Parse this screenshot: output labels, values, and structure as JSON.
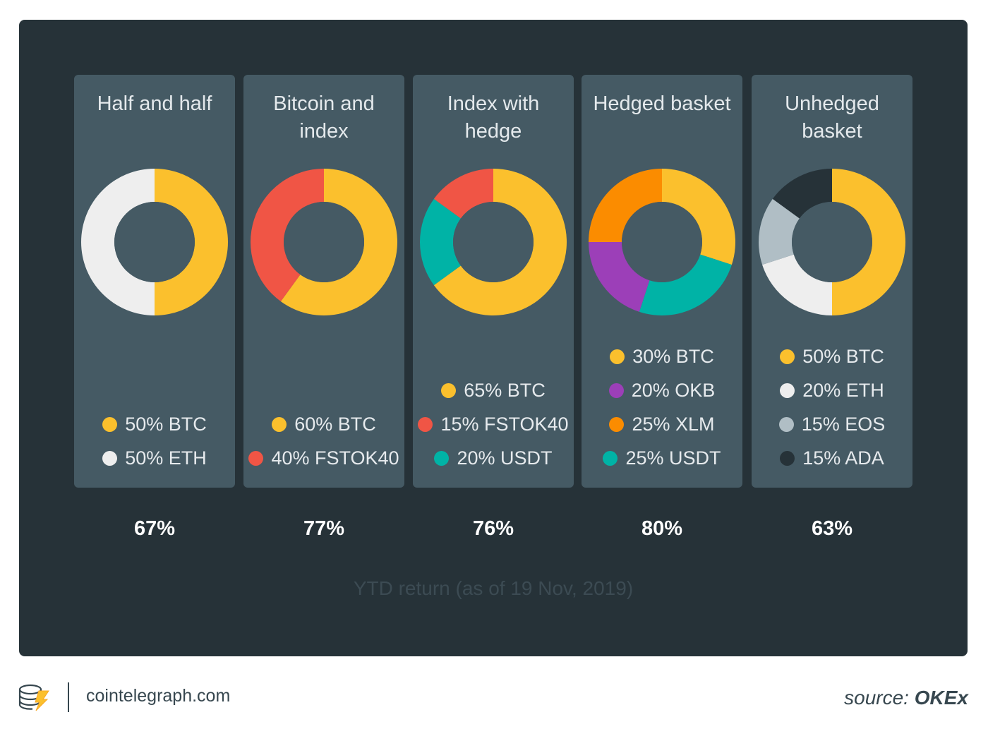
{
  "chart_data": {
    "type": "pie",
    "caption": "YTD return (as of 19 Nov, 2019)",
    "charts": [
      {
        "title": "Half and half",
        "return": "67%",
        "slices": [
          {
            "label": "50% BTC",
            "value": 50,
            "color": "#fbc02d"
          },
          {
            "label": "50% ETH",
            "value": 50,
            "color": "#eeeeee"
          }
        ]
      },
      {
        "title": "Bitcoin and index",
        "return": "77%",
        "slices": [
          {
            "label": "60% BTC",
            "value": 60,
            "color": "#fbc02d"
          },
          {
            "label": "40% FSTOK40",
            "value": 40,
            "color": "#f05545"
          }
        ]
      },
      {
        "title": "Index with hedge",
        "return": "76%",
        "slices": [
          {
            "label": "65% BTC",
            "value": 65,
            "color": "#fbc02d"
          },
          {
            "label": "15% FSTOK40",
            "value": 15,
            "color": "#f05545"
          },
          {
            "label": "20% USDT",
            "value": 20,
            "color": "#00b3a6"
          }
        ],
        "draw_order": [
          0,
          2,
          1
        ]
      },
      {
        "title": "Hedged basket",
        "return": "80%",
        "slices": [
          {
            "label": "30% BTC",
            "value": 30,
            "color": "#fbc02d"
          },
          {
            "label": "20% OKB",
            "value": 20,
            "color": "#9c3fb8"
          },
          {
            "label": "25% XLM",
            "value": 25,
            "color": "#fb8c00"
          },
          {
            "label": "25% USDT",
            "value": 25,
            "color": "#00b3a6"
          }
        ],
        "draw_order": [
          0,
          3,
          1,
          2
        ]
      },
      {
        "title": "Unhedged basket",
        "return": "63%",
        "slices": [
          {
            "label": "50% BTC",
            "value": 50,
            "color": "#fbc02d"
          },
          {
            "label": "20% ETH",
            "value": 20,
            "color": "#eeeeee"
          },
          {
            "label": "15% EOS",
            "value": 15,
            "color": "#b0bec5"
          },
          {
            "label": "15% ADA",
            "value": 15,
            "color": "#263238"
          }
        ]
      }
    ]
  },
  "footer": {
    "site": "cointelegraph.com",
    "source_label": "source:",
    "source_name": "OKEx"
  },
  "colors": {
    "background": "#263238",
    "panel": "#455a64",
    "donut_hole": "#455a64"
  }
}
